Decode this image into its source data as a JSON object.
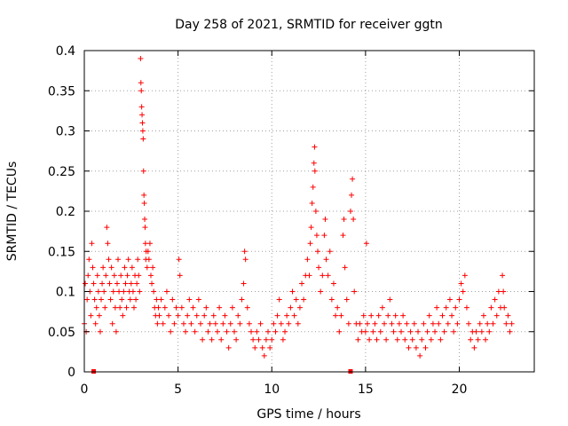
{
  "chart_data": {
    "type": "scatter",
    "title": "Day 258 of 2021, SRMTID for receiver ggtn",
    "xlabel": "GPS time / hours",
    "ylabel": "SRMTID / TECUs",
    "xlim": [
      0,
      24
    ],
    "ylim": [
      0,
      0.4
    ],
    "grid": true,
    "marker": "+",
    "color": "#ff0000",
    "x_ticks": [
      0,
      5,
      10,
      15,
      20
    ],
    "y_ticks": [
      0,
      0.05,
      0.1,
      0.15,
      0.2,
      0.25,
      0.3,
      0.35,
      0.4
    ],
    "x_tick_labels": [
      "0",
      "5",
      "10",
      "15",
      "20"
    ],
    "y_tick_labels": [
      "0",
      "0.05",
      "0.1",
      "0.15",
      "0.2",
      "0.25",
      "0.3",
      "0.35",
      "0.4"
    ],
    "series": [
      {
        "name": "SRMTID",
        "points": [
          [
            0.0,
            0.06
          ],
          [
            0.05,
            0.11
          ],
          [
            0.1,
            0.05
          ],
          [
            0.15,
            0.09
          ],
          [
            0.2,
            0.12
          ],
          [
            0.25,
            0.14
          ],
          [
            0.3,
            0.1
          ],
          [
            0.35,
            0.07
          ],
          [
            0.4,
            0.16
          ],
          [
            0.45,
            0.13
          ],
          [
            0.5,
            0.11
          ],
          [
            0.55,
            0.09
          ],
          [
            0.6,
            0.06
          ],
          [
            0.65,
            0.08
          ],
          [
            0.7,
            0.12
          ],
          [
            0.75,
            0.1
          ],
          [
            0.8,
            0.07
          ],
          [
            0.85,
            0.05
          ],
          [
            0.9,
            0.09
          ],
          [
            0.95,
            0.11
          ],
          [
            1.0,
            0.13
          ],
          [
            1.05,
            0.1
          ],
          [
            1.1,
            0.08
          ],
          [
            1.15,
            0.12
          ],
          [
            1.2,
            0.18
          ],
          [
            1.25,
            0.16
          ],
          [
            1.3,
            0.14
          ],
          [
            1.35,
            0.11
          ],
          [
            1.4,
            0.09
          ],
          [
            1.45,
            0.13
          ],
          [
            1.5,
            0.06
          ],
          [
            1.55,
            0.1
          ],
          [
            1.6,
            0.12
          ],
          [
            1.65,
            0.08
          ],
          [
            1.7,
            0.05
          ],
          [
            1.75,
            0.11
          ],
          [
            1.8,
            0.14
          ],
          [
            1.85,
            0.1
          ],
          [
            1.9,
            0.08
          ],
          [
            1.95,
            0.12
          ],
          [
            2.0,
            0.09
          ],
          [
            2.05,
            0.07
          ],
          [
            2.1,
            0.1
          ],
          [
            2.15,
            0.13
          ],
          [
            2.2,
            0.11
          ],
          [
            2.25,
            0.08
          ],
          [
            2.3,
            0.12
          ],
          [
            2.35,
            0.14
          ],
          [
            2.4,
            0.1
          ],
          [
            2.45,
            0.09
          ],
          [
            2.5,
            0.11
          ],
          [
            2.55,
            0.13
          ],
          [
            2.6,
            0.1
          ],
          [
            2.65,
            0.08
          ],
          [
            2.7,
            0.12
          ],
          [
            2.75,
            0.09
          ],
          [
            2.8,
            0.11
          ],
          [
            2.85,
            0.14
          ],
          [
            2.9,
            0.12
          ],
          [
            2.95,
            0.1
          ],
          [
            3.0,
            0.39
          ],
          [
            3.02,
            0.36
          ],
          [
            3.04,
            0.35
          ],
          [
            3.06,
            0.33
          ],
          [
            3.08,
            0.32
          ],
          [
            3.1,
            0.31
          ],
          [
            3.12,
            0.3
          ],
          [
            3.14,
            0.29
          ],
          [
            3.16,
            0.25
          ],
          [
            3.18,
            0.22
          ],
          [
            3.2,
            0.21
          ],
          [
            3.22,
            0.19
          ],
          [
            3.24,
            0.18
          ],
          [
            3.26,
            0.16
          ],
          [
            3.28,
            0.14
          ],
          [
            3.3,
            0.15
          ],
          [
            3.35,
            0.13
          ],
          [
            3.4,
            0.15
          ],
          [
            3.45,
            0.14
          ],
          [
            3.5,
            0.16
          ],
          [
            3.55,
            0.12
          ],
          [
            3.6,
            0.11
          ],
          [
            3.65,
            0.13
          ],
          [
            3.7,
            0.1
          ],
          [
            3.75,
            0.08
          ],
          [
            3.8,
            0.07
          ],
          [
            3.85,
            0.09
          ],
          [
            3.9,
            0.06
          ],
          [
            3.95,
            0.08
          ],
          [
            4.0,
            0.07
          ],
          [
            4.1,
            0.09
          ],
          [
            4.2,
            0.06
          ],
          [
            4.3,
            0.08
          ],
          [
            4.4,
            0.1
          ],
          [
            4.5,
            0.07
          ],
          [
            4.6,
            0.05
          ],
          [
            4.7,
            0.09
          ],
          [
            4.8,
            0.06
          ],
          [
            4.9,
            0.08
          ],
          [
            5.0,
            0.07
          ],
          [
            5.05,
            0.14
          ],
          [
            5.1,
            0.12
          ],
          [
            5.2,
            0.08
          ],
          [
            5.3,
            0.06
          ],
          [
            5.4,
            0.05
          ],
          [
            5.5,
            0.07
          ],
          [
            5.6,
            0.09
          ],
          [
            5.7,
            0.06
          ],
          [
            5.8,
            0.08
          ],
          [
            5.9,
            0.05
          ],
          [
            6.0,
            0.07
          ],
          [
            6.1,
            0.09
          ],
          [
            6.2,
            0.06
          ],
          [
            6.3,
            0.04
          ],
          [
            6.4,
            0.07
          ],
          [
            6.5,
            0.08
          ],
          [
            6.6,
            0.05
          ],
          [
            6.7,
            0.06
          ],
          [
            6.8,
            0.04
          ],
          [
            6.9,
            0.07
          ],
          [
            7.0,
            0.06
          ],
          [
            7.1,
            0.05
          ],
          [
            7.2,
            0.08
          ],
          [
            7.3,
            0.04
          ],
          [
            7.4,
            0.06
          ],
          [
            7.5,
            0.07
          ],
          [
            7.6,
            0.05
          ],
          [
            7.7,
            0.03
          ],
          [
            7.8,
            0.06
          ],
          [
            7.9,
            0.08
          ],
          [
            8.0,
            0.05
          ],
          [
            8.1,
            0.04
          ],
          [
            8.2,
            0.07
          ],
          [
            8.3,
            0.06
          ],
          [
            8.4,
            0.09
          ],
          [
            8.5,
            0.11
          ],
          [
            8.55,
            0.15
          ],
          [
            8.6,
            0.14
          ],
          [
            8.7,
            0.08
          ],
          [
            8.8,
            0.06
          ],
          [
            8.9,
            0.05
          ],
          [
            9.0,
            0.04
          ],
          [
            9.1,
            0.03
          ],
          [
            9.2,
            0.05
          ],
          [
            9.3,
            0.04
          ],
          [
            9.4,
            0.06
          ],
          [
            9.5,
            0.03
          ],
          [
            9.6,
            0.02
          ],
          [
            9.7,
            0.04
          ],
          [
            9.8,
            0.05
          ],
          [
            9.9,
            0.03
          ],
          [
            10.0,
            0.04
          ],
          [
            10.1,
            0.06
          ],
          [
            10.2,
            0.05
          ],
          [
            10.3,
            0.07
          ],
          [
            10.4,
            0.09
          ],
          [
            10.5,
            0.06
          ],
          [
            10.6,
            0.04
          ],
          [
            10.7,
            0.05
          ],
          [
            10.8,
            0.07
          ],
          [
            10.9,
            0.06
          ],
          [
            11.0,
            0.08
          ],
          [
            11.1,
            0.1
          ],
          [
            11.2,
            0.07
          ],
          [
            11.3,
            0.09
          ],
          [
            11.4,
            0.06
          ],
          [
            11.5,
            0.08
          ],
          [
            11.6,
            0.11
          ],
          [
            11.7,
            0.09
          ],
          [
            11.8,
            0.12
          ],
          [
            11.9,
            0.14
          ],
          [
            12.0,
            0.12
          ],
          [
            12.05,
            0.16
          ],
          [
            12.1,
            0.18
          ],
          [
            12.15,
            0.21
          ],
          [
            12.2,
            0.23
          ],
          [
            12.25,
            0.26
          ],
          [
            12.28,
            0.28
          ],
          [
            12.3,
            0.25
          ],
          [
            12.35,
            0.2
          ],
          [
            12.4,
            0.17
          ],
          [
            12.45,
            0.15
          ],
          [
            12.5,
            0.13
          ],
          [
            12.6,
            0.1
          ],
          [
            12.7,
            0.12
          ],
          [
            12.8,
            0.17
          ],
          [
            12.85,
            0.19
          ],
          [
            12.9,
            0.14
          ],
          [
            13.0,
            0.12
          ],
          [
            13.1,
            0.15
          ],
          [
            13.2,
            0.09
          ],
          [
            13.3,
            0.11
          ],
          [
            13.4,
            0.07
          ],
          [
            13.5,
            0.08
          ],
          [
            13.6,
            0.05
          ],
          [
            13.7,
            0.07
          ],
          [
            13.8,
            0.17
          ],
          [
            13.85,
            0.19
          ],
          [
            13.9,
            0.13
          ],
          [
            14.0,
            0.09
          ],
          [
            14.1,
            0.06
          ],
          [
            14.2,
            0.2
          ],
          [
            14.25,
            0.22
          ],
          [
            14.3,
            0.24
          ],
          [
            14.35,
            0.19
          ],
          [
            14.4,
            0.1
          ],
          [
            14.5,
            0.06
          ],
          [
            14.6,
            0.04
          ],
          [
            14.7,
            0.06
          ],
          [
            14.8,
            0.05
          ],
          [
            14.9,
            0.07
          ],
          [
            15.0,
            0.05
          ],
          [
            15.05,
            0.16
          ],
          [
            15.1,
            0.06
          ],
          [
            15.2,
            0.04
          ],
          [
            15.3,
            0.07
          ],
          [
            15.4,
            0.05
          ],
          [
            15.5,
            0.06
          ],
          [
            15.6,
            0.04
          ],
          [
            15.7,
            0.07
          ],
          [
            15.8,
            0.05
          ],
          [
            15.9,
            0.08
          ],
          [
            16.0,
            0.06
          ],
          [
            16.1,
            0.04
          ],
          [
            16.2,
            0.07
          ],
          [
            16.3,
            0.09
          ],
          [
            16.4,
            0.06
          ],
          [
            16.5,
            0.05
          ],
          [
            16.6,
            0.07
          ],
          [
            16.7,
            0.04
          ],
          [
            16.8,
            0.06
          ],
          [
            16.9,
            0.05
          ],
          [
            17.0,
            0.07
          ],
          [
            17.1,
            0.04
          ],
          [
            17.2,
            0.06
          ],
          [
            17.3,
            0.03
          ],
          [
            17.4,
            0.05
          ],
          [
            17.5,
            0.04
          ],
          [
            17.6,
            0.06
          ],
          [
            17.7,
            0.03
          ],
          [
            17.8,
            0.05
          ],
          [
            17.9,
            0.02
          ],
          [
            18.0,
            0.04
          ],
          [
            18.1,
            0.06
          ],
          [
            18.2,
            0.03
          ],
          [
            18.3,
            0.05
          ],
          [
            18.4,
            0.07
          ],
          [
            18.5,
            0.04
          ],
          [
            18.6,
            0.06
          ],
          [
            18.7,
            0.05
          ],
          [
            18.8,
            0.08
          ],
          [
            18.9,
            0.06
          ],
          [
            19.0,
            0.04
          ],
          [
            19.1,
            0.07
          ],
          [
            19.2,
            0.05
          ],
          [
            19.3,
            0.08
          ],
          [
            19.4,
            0.06
          ],
          [
            19.5,
            0.09
          ],
          [
            19.6,
            0.07
          ],
          [
            19.7,
            0.05
          ],
          [
            19.8,
            0.08
          ],
          [
            19.9,
            0.06
          ],
          [
            20.0,
            0.09
          ],
          [
            20.1,
            0.11
          ],
          [
            20.2,
            0.1
          ],
          [
            20.3,
            0.12
          ],
          [
            20.4,
            0.08
          ],
          [
            20.5,
            0.06
          ],
          [
            20.6,
            0.04
          ],
          [
            20.7,
            0.05
          ],
          [
            20.8,
            0.03
          ],
          [
            20.9,
            0.05
          ],
          [
            21.0,
            0.04
          ],
          [
            21.1,
            0.06
          ],
          [
            21.2,
            0.05
          ],
          [
            21.3,
            0.07
          ],
          [
            21.4,
            0.04
          ],
          [
            21.5,
            0.06
          ],
          [
            21.6,
            0.05
          ],
          [
            21.7,
            0.08
          ],
          [
            21.8,
            0.06
          ],
          [
            21.9,
            0.09
          ],
          [
            22.0,
            0.07
          ],
          [
            22.1,
            0.1
          ],
          [
            22.2,
            0.08
          ],
          [
            22.3,
            0.12
          ],
          [
            22.35,
            0.1
          ],
          [
            22.4,
            0.08
          ],
          [
            22.5,
            0.06
          ],
          [
            22.6,
            0.07
          ],
          [
            22.7,
            0.05
          ],
          [
            22.8,
            0.06
          ]
        ]
      }
    ],
    "bottom_markers_x": [
      0.5,
      14.2
    ]
  }
}
